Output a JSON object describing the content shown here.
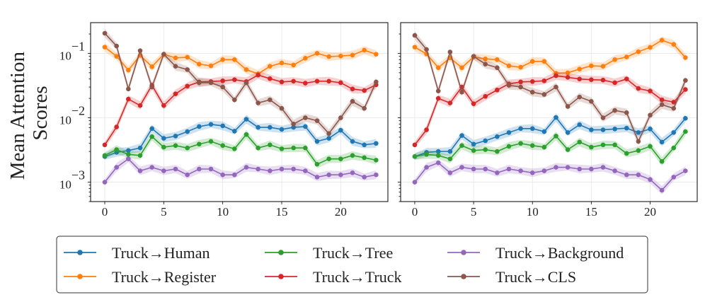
{
  "chart_data": {
    "type": "line",
    "ylabel": "Mean Attention Scores",
    "yscale": "log",
    "ylim": [
      0.0005,
      0.3
    ],
    "xlim": [
      -1.2,
      24
    ],
    "x_ticks": [
      0,
      5,
      10,
      15,
      20
    ],
    "y_ticks": [
      {
        "value": 0.1,
        "base": "10",
        "exp": "−1"
      },
      {
        "value": 0.01,
        "base": "10",
        "exp": "−2"
      },
      {
        "value": 0.001,
        "base": "10",
        "exp": "−3"
      }
    ],
    "grid": true,
    "legend_position": "bottom",
    "x": [
      0,
      1,
      2,
      3,
      4,
      5,
      6,
      7,
      8,
      9,
      10,
      11,
      12,
      13,
      14,
      15,
      16,
      17,
      18,
      19,
      20,
      21,
      22,
      23
    ],
    "series_styles": [
      {
        "name": "Truck→Human",
        "color": "#1f77b4"
      },
      {
        "name": "Truck→Register",
        "color": "#ff7f0e"
      },
      {
        "name": "Truck→Tree",
        "color": "#2ca02c"
      },
      {
        "name": "Truck→Truck",
        "color": "#d62728"
      },
      {
        "name": "Truck→Background",
        "color": "#9467bd"
      },
      {
        "name": "Truck→CLS",
        "color": "#8c564b"
      }
    ],
    "legend_order": [
      0,
      1,
      2,
      3,
      4,
      5
    ],
    "panels": [
      {
        "series": [
          {
            "values": [
              0.0025,
              0.0029,
              0.0031,
              0.0034,
              0.0068,
              0.0048,
              0.0052,
              0.0061,
              0.0073,
              0.0079,
              0.0075,
              0.0062,
              0.0095,
              0.0071,
              0.0071,
              0.0066,
              0.0071,
              0.0073,
              0.0043,
              0.0048,
              0.0064,
              0.0043,
              0.0038,
              0.004
            ]
          },
          {
            "values": [
              0.125,
              0.09,
              0.055,
              0.093,
              0.062,
              0.097,
              0.085,
              0.087,
              0.068,
              0.064,
              0.08,
              0.08,
              0.056,
              0.048,
              0.063,
              0.071,
              0.066,
              0.084,
              0.1,
              0.089,
              0.091,
              0.094,
              0.112,
              0.097
            ]
          },
          {
            "values": [
              0.0026,
              0.0032,
              0.0027,
              0.0026,
              0.0051,
              0.0035,
              0.0037,
              0.0034,
              0.0039,
              0.0043,
              0.0037,
              0.0033,
              0.0055,
              0.0034,
              0.0038,
              0.0033,
              0.0034,
              0.0034,
              0.0019,
              0.0023,
              0.0023,
              0.0026,
              0.0024,
              0.0022
            ]
          },
          {
            "values": [
              0.0038,
              0.0072,
              0.0195,
              0.0155,
              0.032,
              0.0155,
              0.0235,
              0.031,
              0.036,
              0.0365,
              0.0375,
              0.039,
              0.0365,
              0.046,
              0.0405,
              0.036,
              0.037,
              0.0345,
              0.037,
              0.037,
              0.035,
              0.028,
              0.0265,
              0.0325
            ]
          },
          {
            "values": [
              0.001,
              0.0017,
              0.0023,
              0.0015,
              0.0017,
              0.0015,
              0.0016,
              0.0013,
              0.0016,
              0.0016,
              0.0013,
              0.0013,
              0.0017,
              0.0016,
              0.0015,
              0.0016,
              0.0016,
              0.0015,
              0.0012,
              0.0013,
              0.0013,
              0.0014,
              0.0012,
              0.0013
            ]
          },
          {
            "values": [
              0.205,
              0.13,
              0.028,
              0.11,
              0.03,
              0.097,
              0.063,
              0.056,
              0.035,
              0.035,
              0.03,
              0.019,
              0.035,
              0.017,
              0.019,
              0.014,
              0.008,
              0.01,
              0.009,
              0.0057,
              0.01,
              0.018,
              0.014,
              0.036
            ]
          }
        ]
      },
      {
        "series": [
          {
            "values": [
              0.0025,
              0.0029,
              0.003,
              0.003,
              0.0053,
              0.0039,
              0.0044,
              0.0051,
              0.0059,
              0.0068,
              0.0068,
              0.0061,
              0.0101,
              0.0059,
              0.0078,
              0.0065,
              0.0065,
              0.0067,
              0.0069,
              0.0059,
              0.0067,
              0.0042,
              0.0059,
              0.0098
            ]
          },
          {
            "values": [
              0.125,
              0.098,
              0.06,
              0.085,
              0.06,
              0.088,
              0.082,
              0.08,
              0.064,
              0.061,
              0.075,
              0.075,
              0.049,
              0.05,
              0.057,
              0.064,
              0.063,
              0.08,
              0.088,
              0.106,
              0.124,
              0.16,
              0.138,
              0.086
            ]
          },
          {
            "values": [
              0.0025,
              0.0027,
              0.0026,
              0.0023,
              0.0037,
              0.0031,
              0.0032,
              0.003,
              0.0036,
              0.004,
              0.0037,
              0.0035,
              0.0052,
              0.0032,
              0.0042,
              0.0035,
              0.0038,
              0.0038,
              0.0028,
              0.0031,
              0.0036,
              0.0021,
              0.0034,
              0.0061
            ]
          },
          {
            "values": [
              0.0038,
              0.0065,
              0.02,
              0.017,
              0.03,
              0.0165,
              0.0215,
              0.027,
              0.0335,
              0.036,
              0.0365,
              0.0375,
              0.045,
              0.0425,
              0.04,
              0.039,
              0.0385,
              0.035,
              0.04,
              0.0285,
              0.026,
              0.019,
              0.0175,
              0.0275
            ]
          },
          {
            "values": [
              0.001,
              0.0017,
              0.002,
              0.0014,
              0.0017,
              0.0016,
              0.0016,
              0.0014,
              0.0016,
              0.0015,
              0.0014,
              0.0015,
              0.0017,
              0.0017,
              0.0016,
              0.0016,
              0.0017,
              0.0015,
              0.0013,
              0.0013,
              0.0011,
              0.00075,
              0.0012,
              0.0015
            ]
          },
          {
            "values": [
              0.19,
              0.115,
              0.026,
              0.105,
              0.025,
              0.09,
              0.068,
              0.06,
              0.032,
              0.03,
              0.025,
              0.023,
              0.03,
              0.015,
              0.021,
              0.018,
              0.01,
              0.013,
              0.012,
              0.0043,
              0.011,
              0.016,
              0.014,
              0.038
            ]
          }
        ]
      }
    ]
  }
}
